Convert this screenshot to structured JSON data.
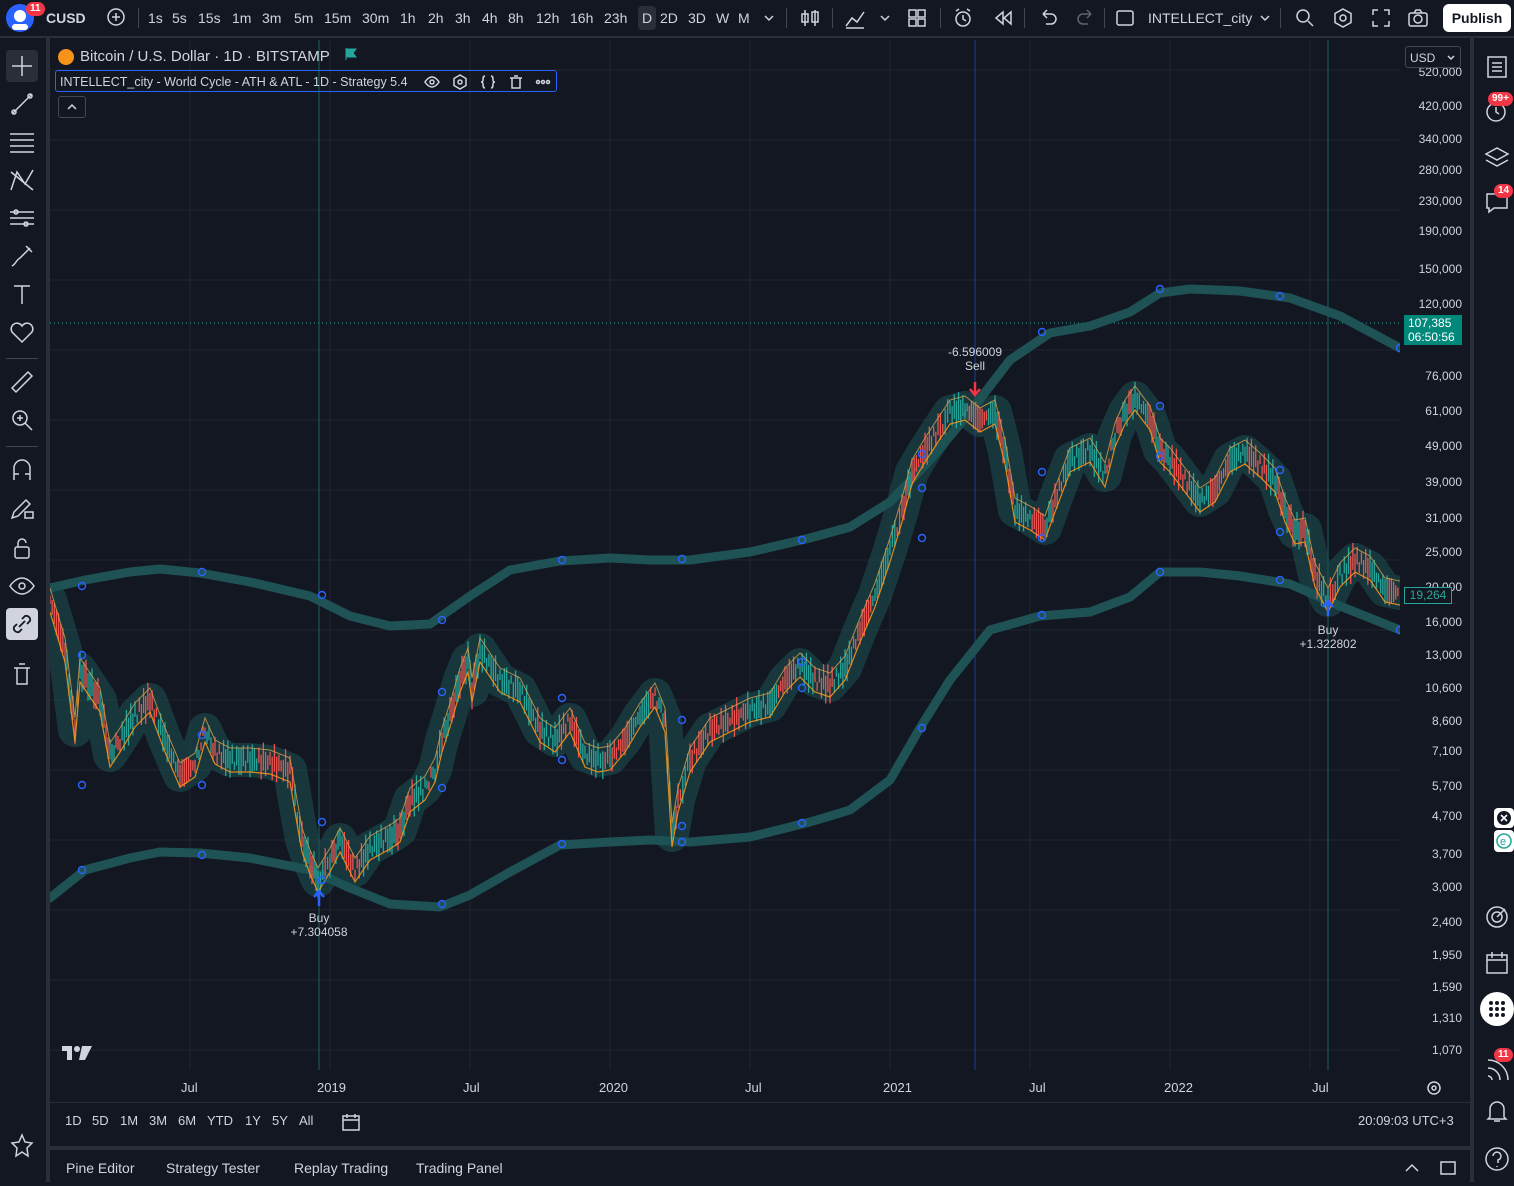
{
  "header": {
    "symbol": "CUSD",
    "avatar_badge": "11",
    "timeframes": [
      "1s",
      "5s",
      "15s",
      "1m",
      "3m",
      "5m",
      "15m",
      "30m",
      "1h",
      "2h",
      "3h",
      "4h",
      "8h",
      "12h",
      "16h",
      "23h",
      "D",
      "2D",
      "3D",
      "W",
      "M"
    ],
    "active_timeframe": "D",
    "layout_name": "INTELLECT_city",
    "publish_label": "Publish"
  },
  "legend": {
    "symbol_title": "Bitcoin / U.S. Dollar · 1D · BITSTAMP",
    "indicator_title": "INTELLECT_city - World Cycle - ATH & ATL - 1D - Strategy 5.4"
  },
  "price_axis": {
    "currency": "USD",
    "ticks": [
      "520,000",
      "420,000",
      "340,000",
      "280,000",
      "230,000",
      "190,000",
      "150,000",
      "120,000",
      "76,000",
      "61,000",
      "49,000",
      "39,000",
      "31,000",
      "25,000",
      "20,000",
      "16,000",
      "13,000",
      "10,600",
      "8,600",
      "7,100",
      "5,700",
      "4,700",
      "3,700",
      "3,000",
      "2,400",
      "1,950",
      "1,590",
      "1,310",
      "1,070"
    ],
    "last_price": "107,385",
    "countdown": "06:50:56",
    "current_price": "19,264"
  },
  "time_axis": {
    "labels": [
      "Jul",
      "2019",
      "Jul",
      "2020",
      "Jul",
      "2021",
      "Jul",
      "2022",
      "Jul"
    ]
  },
  "signals": {
    "buy1_label": "Buy",
    "buy1_value": "+7.304058",
    "sell_value": "-6.596009",
    "sell_label": "Sell",
    "buy2_label": "Buy",
    "buy2_value": "+1.322802"
  },
  "range_bar": {
    "ranges": [
      "1D",
      "5D",
      "1M",
      "3M",
      "6M",
      "YTD",
      "1Y",
      "5Y",
      "All"
    ],
    "clock": "20:09:03 UTC+3"
  },
  "panels": [
    "Pine Editor",
    "Strategy Tester",
    "Replay Trading",
    "Trading Panel"
  ],
  "right_badges": {
    "alerts": "99+",
    "chat": "14",
    "notifications": "11"
  },
  "colors": {
    "background": "#131722",
    "band": "#1e5254",
    "candle_up": "#26a69a",
    "candle_down": "#ef5350",
    "orange_line": "#f7931a",
    "buy_arrow": "#2962ff",
    "sell_arrow": "#f23645",
    "price_label": "#00897b"
  }
}
